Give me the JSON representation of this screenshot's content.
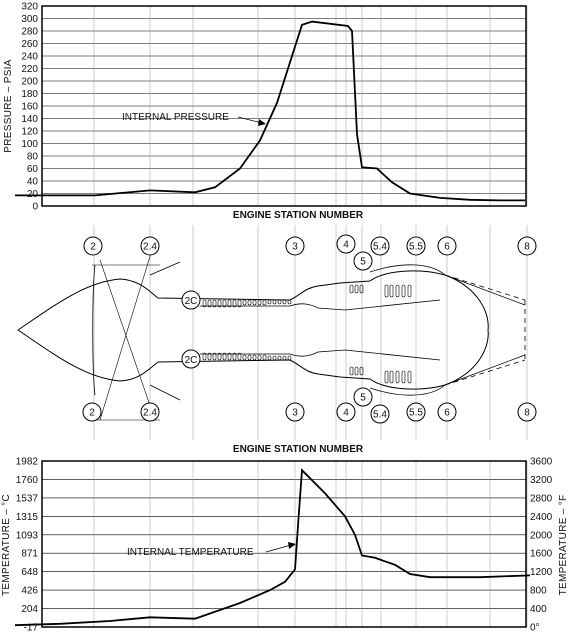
{
  "pressure_chart": {
    "ylabel": "PRESSURE – PSIA",
    "xlabel": "ENGINE STATION NUMBER",
    "annotation": "INTERNAL PRESSURE",
    "ticks": [
      "0",
      "20",
      "40",
      "60",
      "80",
      "100",
      "120",
      "140",
      "160",
      "180",
      "200",
      "220",
      "240",
      "260",
      "280",
      "300",
      "320"
    ]
  },
  "engine": {
    "title": "ENGINE STATION NUMBER",
    "top_stations": [
      "2",
      "2.4",
      "3",
      "4",
      "5",
      "5.4",
      "5.5",
      "6",
      "8"
    ],
    "bottom_stations": [
      "2",
      "2.4",
      "3",
      "4",
      "5",
      "5.4",
      "5.5",
      "6",
      "8"
    ],
    "combustor_label_top": "2C",
    "combustor_label_bottom": "2C"
  },
  "temperature_chart": {
    "ylabel_left": "TEMPERATURE – °C",
    "ylabel_right": "TEMPERATURE – °F",
    "annotation": "INTERNAL TEMPERATURE",
    "ticks_c": [
      "-17",
      "204",
      "426",
      "648",
      "871",
      "1093",
      "1315",
      "1537",
      "1760",
      "1982"
    ],
    "ticks_f": [
      "0°",
      "400",
      "800",
      "1200",
      "1600",
      "2000",
      "2400",
      "2800",
      "3200",
      "3600"
    ]
  },
  "chart_data": [
    {
      "type": "line",
      "title": "",
      "xlabel": "ENGINE STATION NUMBER",
      "ylabel": "PRESSURE – PSIA",
      "ylim": [
        0,
        320
      ],
      "grid": true,
      "series": [
        {
          "name": "INTERNAL PRESSURE",
          "x": [
            15,
            95,
            150,
            195,
            215,
            240,
            260,
            277,
            302,
            312,
            348,
            352,
            357,
            362,
            377,
            392,
            410,
            440,
            470,
            500,
            525
          ],
          "y": [
            17,
            17,
            25,
            22,
            30,
            60,
            105,
            165,
            290,
            295,
            288,
            280,
            115,
            62,
            60,
            38,
            20,
            13,
            10,
            9,
            9
          ]
        }
      ]
    },
    {
      "type": "line",
      "title": "",
      "xlabel": "ENGINE STATION NUMBER",
      "ylabel": "TEMPERATURE – °C",
      "ylim": [
        0,
        3600
      ],
      "grid": true,
      "series": [
        {
          "name": "INTERNAL TEMPERATURE",
          "x": [
            15,
            60,
            110,
            150,
            195,
            240,
            270,
            285,
            295,
            298,
            302,
            325,
            345,
            355,
            362,
            375,
            395,
            410,
            430,
            480,
            530
          ],
          "y": [
            40,
            70,
            130,
            210,
            180,
            520,
            800,
            980,
            1250,
            2200,
            3400,
            2900,
            2400,
            2000,
            1550,
            1500,
            1350,
            1150,
            1080,
            1080,
            1120
          ]
        }
      ]
    }
  ]
}
